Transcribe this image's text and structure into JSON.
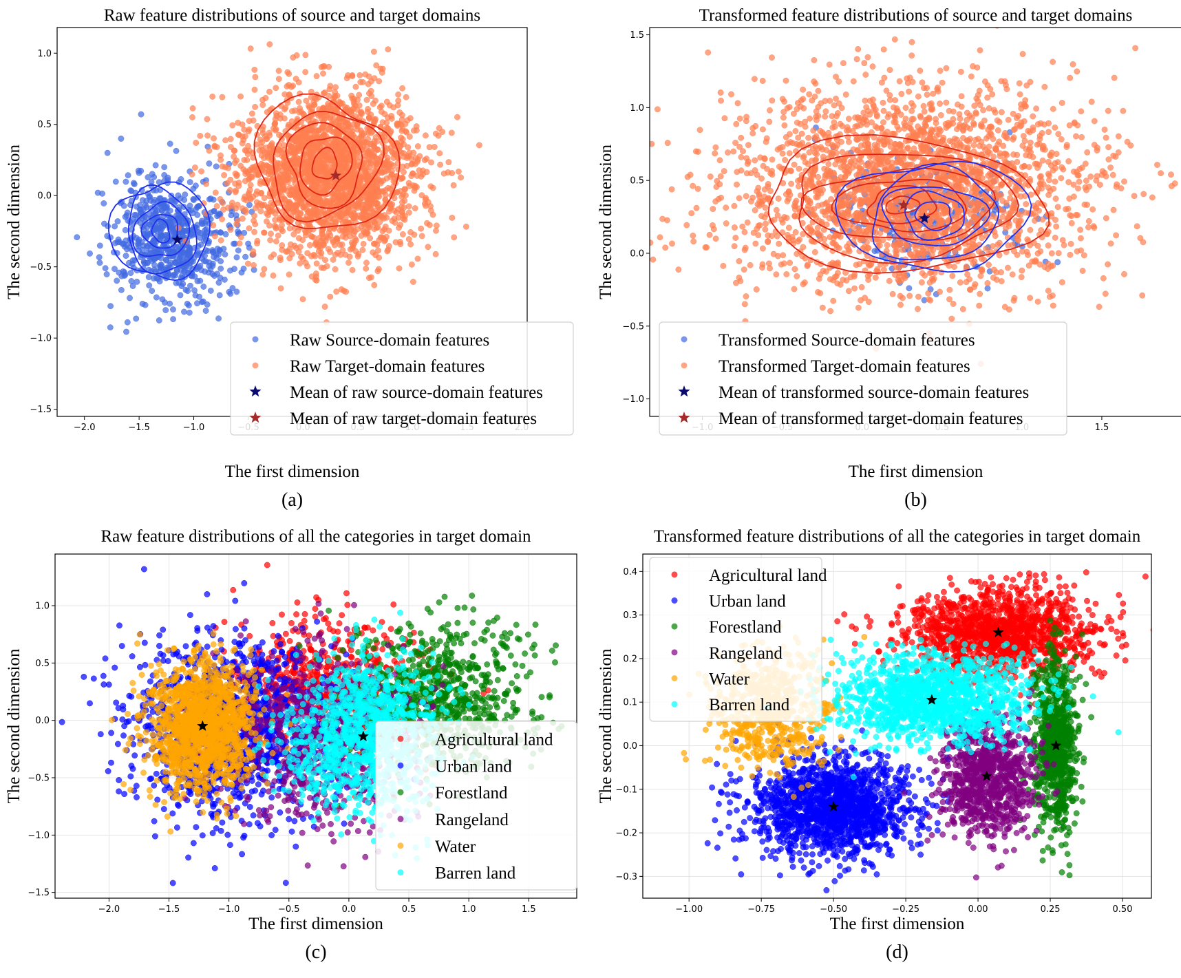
{
  "colors": {
    "source": "#4169e1",
    "target": "#ff7f50",
    "source_contour": "#1f2ff0",
    "target_contour": "#dd2515",
    "source_mean": "#0a0a6e",
    "target_mean": "#a52a2a",
    "agricultural": "#ff0000",
    "urban": "#0000ff",
    "forest": "#008000",
    "range": "#800080",
    "water": "#ffa500",
    "barren": "#00ffff",
    "category_mean": "#000000"
  },
  "chart_data": [
    {
      "id": "a",
      "type": "scatter",
      "panel_label": "(a)",
      "title": "Raw feature distributions of source and target domains",
      "xlabel": "The first dimension",
      "ylabel": "The second dimension",
      "xlim": [
        -2.25,
        2.05
      ],
      "ylim": [
        -1.55,
        1.18
      ],
      "xticks": [
        -2.0,
        -1.5,
        -1.0,
        -0.5,
        0.0,
        0.5,
        1.0,
        1.5,
        2.0
      ],
      "yticks": [
        -1.5,
        -1.0,
        -0.5,
        0.0,
        0.5,
        1.0
      ],
      "tick_labels_x": [
        "−2.0",
        "−1.5",
        "−1.0",
        "−0.5",
        "0.0",
        "0.5",
        "1.0",
        "1.5",
        "2.0"
      ],
      "tick_labels_y": [
        "−1.5",
        "−1.0",
        "−0.5",
        "0.0",
        "0.5",
        "1.0"
      ],
      "grid": false,
      "legend_position": "bottom-right",
      "clusters": [
        {
          "name": "Raw Source-domain features",
          "color_key": "source",
          "center": [
            -1.2,
            -0.3
          ],
          "spread": [
            0.28,
            0.22
          ],
          "n": 700
        },
        {
          "name": "Raw Target-domain features",
          "color_key": "target",
          "center": [
            0.25,
            0.15
          ],
          "spread": [
            0.42,
            0.3
          ],
          "n": 2300
        }
      ],
      "contours": [
        {
          "color_key": "source_contour",
          "center": [
            -1.3,
            -0.25
          ],
          "radii": [
            [
              0.42,
              0.36
            ],
            [
              0.33,
              0.28
            ],
            [
              0.24,
              0.2
            ],
            [
              0.15,
              0.13
            ],
            [
              0.08,
              0.08
            ]
          ]
        },
        {
          "color_key": "target_contour",
          "center": [
            0.2,
            0.22
          ],
          "radii": [
            [
              0.62,
              0.48
            ],
            [
              0.48,
              0.38
            ],
            [
              0.35,
              0.28
            ],
            [
              0.23,
              0.2
            ],
            [
              0.12,
              0.1
            ]
          ]
        }
      ],
      "means": [
        {
          "name": "Mean of raw source-domain features",
          "color_key": "source_mean",
          "x": -1.15,
          "y": -0.31
        },
        {
          "name": "Mean of raw target-domain features",
          "color_key": "target_mean",
          "x": 0.3,
          "y": 0.14
        }
      ],
      "legend": [
        {
          "label": "Raw Source-domain features",
          "marker": "dot",
          "color_key": "source"
        },
        {
          "label": "Raw Target-domain features",
          "marker": "dot",
          "color_key": "target"
        },
        {
          "label": "Mean of raw source-domain features",
          "marker": "star",
          "color_key": "source_mean"
        },
        {
          "label": "Mean of raw target-domain features",
          "marker": "star",
          "color_key": "target_mean"
        }
      ]
    },
    {
      "id": "b",
      "type": "scatter",
      "panel_label": "(b)",
      "title": "Transformed feature distributions of source and target domains",
      "xlabel": "The first dimension",
      "ylabel": "The second dimension",
      "xlim": [
        -1.33,
        2.0
      ],
      "ylim": [
        -1.12,
        1.55
      ],
      "xticks": [
        -1.0,
        -0.5,
        0.0,
        0.5,
        1.0,
        1.5
      ],
      "yticks": [
        -1.0,
        -0.5,
        0.0,
        0.5,
        1.0,
        1.5
      ],
      "tick_labels_x": [
        "−1.0",
        "−0.5",
        "0.0",
        "0.5",
        "1.0",
        "1.5"
      ],
      "tick_labels_y": [
        "−1.0",
        "−0.5",
        "0.0",
        "0.5",
        "1.0",
        "1.5"
      ],
      "grid": false,
      "legend_position": "bottom-left",
      "clusters": [
        {
          "name": "Transformed Source-domain features",
          "color_key": "source",
          "center": [
            0.4,
            0.25
          ],
          "spread": [
            0.3,
            0.2
          ],
          "n": 300
        },
        {
          "name": "Transformed Target-domain features",
          "color_key": "target",
          "center": [
            0.3,
            0.45
          ],
          "spread": [
            0.55,
            0.35
          ],
          "n": 2600
        }
      ],
      "contours": [
        {
          "color_key": "target_contour",
          "center": [
            0.25,
            0.33
          ],
          "radii": [
            [
              0.95,
              0.42
            ],
            [
              0.75,
              0.34
            ],
            [
              0.55,
              0.26
            ],
            [
              0.38,
              0.19
            ],
            [
              0.22,
              0.12
            ],
            [
              0.1,
              0.06
            ]
          ]
        },
        {
          "color_key": "source_contour",
          "center": [
            0.45,
            0.26
          ],
          "radii": [
            [
              0.55,
              0.4
            ],
            [
              0.42,
              0.3
            ],
            [
              0.3,
              0.22
            ],
            [
              0.2,
              0.15
            ],
            [
              0.12,
              0.09
            ]
          ]
        }
      ],
      "means": [
        {
          "name": "Mean of transformed source-domain features",
          "color_key": "source_mean",
          "x": 0.39,
          "y": 0.24
        },
        {
          "name": "Mean of transformed target-domain features",
          "color_key": "target_mean",
          "x": 0.26,
          "y": 0.33
        }
      ],
      "legend": [
        {
          "label": "Transformed Source-domain features",
          "marker": "dot",
          "color_key": "source"
        },
        {
          "label": "Transformed Target-domain features",
          "marker": "dot",
          "color_key": "target"
        },
        {
          "label": "Mean of transformed source-domain features",
          "marker": "star",
          "color_key": "source_mean"
        },
        {
          "label": "Mean of transformed target-domain features",
          "marker": "star",
          "color_key": "target_mean"
        }
      ]
    },
    {
      "id": "c",
      "type": "scatter",
      "panel_label": "(c)",
      "title": "Raw feature distributions of all the categories in target domain",
      "xlabel": "The first dimension",
      "ylabel": "The second dimension",
      "xlim": [
        -2.45,
        1.9
      ],
      "ylim": [
        -1.55,
        1.45
      ],
      "xticks": [
        -2.0,
        -1.5,
        -1.0,
        -0.5,
        0.0,
        0.5,
        1.0,
        1.5
      ],
      "yticks": [
        -1.5,
        -1.0,
        -0.5,
        0.0,
        0.5,
        1.0
      ],
      "tick_labels_x": [
        "−2.0",
        "−1.5",
        "−1.0",
        "−0.5",
        "0.0",
        "0.5",
        "1.0",
        "1.5"
      ],
      "tick_labels_y": [
        "−1.5",
        "−1.0",
        "−0.5",
        "0.0",
        "0.5",
        "1.0"
      ],
      "grid": true,
      "legend_position": "bottom-right",
      "clusters": [
        {
          "name": "Agricultural land",
          "color_key": "agricultural",
          "center": [
            -0.2,
            0.3
          ],
          "spread": [
            0.4,
            0.3
          ],
          "n": 600
        },
        {
          "name": "Urban land",
          "color_key": "urban",
          "center": [
            -1.0,
            -0.05
          ],
          "spread": [
            0.42,
            0.38
          ],
          "n": 1300
        },
        {
          "name": "Forestland",
          "color_key": "forest",
          "center": [
            0.75,
            0.2
          ],
          "spread": [
            0.38,
            0.32
          ],
          "n": 800
        },
        {
          "name": "Rangeland",
          "color_key": "range",
          "center": [
            -0.2,
            -0.15
          ],
          "spread": [
            0.4,
            0.38
          ],
          "n": 700
        },
        {
          "name": "Water",
          "color_key": "water",
          "center": [
            -1.22,
            -0.05
          ],
          "spread": [
            0.22,
            0.28
          ],
          "n": 1400
        },
        {
          "name": "Barren land",
          "color_key": "barren",
          "center": [
            0.12,
            -0.14
          ],
          "spread": [
            0.32,
            0.32
          ],
          "n": 1100
        }
      ],
      "means": [
        {
          "name": "Water mean",
          "color_key": "category_mean",
          "x": -1.22,
          "y": -0.05
        },
        {
          "name": "Barren land mean",
          "color_key": "category_mean",
          "x": 0.12,
          "y": -0.14
        }
      ],
      "legend": [
        {
          "label": "Agricultural land",
          "marker": "dot",
          "color_key": "agricultural"
        },
        {
          "label": "Urban land",
          "marker": "dot",
          "color_key": "urban"
        },
        {
          "label": "Forestland",
          "marker": "dot",
          "color_key": "forest"
        },
        {
          "label": "Rangeland",
          "marker": "dot",
          "color_key": "range"
        },
        {
          "label": "Water",
          "marker": "dot",
          "color_key": "water"
        },
        {
          "label": "Barren land",
          "marker": "dot",
          "color_key": "barren"
        }
      ]
    },
    {
      "id": "d",
      "type": "scatter",
      "panel_label": "(d)",
      "title": "Transformed feature distributions of all the categories in target domain",
      "xlabel": "The first dimension",
      "ylabel": "The second dimension",
      "xlim": [
        -1.16,
        0.6
      ],
      "ylim": [
        -0.35,
        0.44
      ],
      "xticks": [
        -1.0,
        -0.75,
        -0.5,
        -0.25,
        0.0,
        0.25,
        0.5
      ],
      "yticks": [
        -0.3,
        -0.2,
        -0.1,
        0.0,
        0.1,
        0.2,
        0.3,
        0.4
      ],
      "tick_labels_x": [
        "−1.00",
        "−0.75",
        "−0.50",
        "−0.25",
        "0.00",
        "0.25",
        "0.50"
      ],
      "tick_labels_y": [
        "−0.3",
        "−0.2",
        "−0.1",
        "0.0",
        "0.1",
        "0.2",
        "0.3",
        "0.4"
      ],
      "grid": true,
      "legend_position": "top-left",
      "clusters": [
        {
          "name": "Agricultural land",
          "color_key": "agricultural",
          "center": [
            0.07,
            0.26
          ],
          "spread": [
            0.17,
            0.05
          ],
          "n": 1300
        },
        {
          "name": "Urban land",
          "color_key": "urban",
          "center": [
            -0.5,
            -0.14
          ],
          "spread": [
            0.14,
            0.055
          ],
          "n": 1500
        },
        {
          "name": "Forestland",
          "color_key": "forest",
          "center": [
            0.27,
            0.0
          ],
          "spread": [
            0.035,
            0.1
          ],
          "n": 800
        },
        {
          "name": "Rangeland",
          "color_key": "range",
          "center": [
            0.03,
            -0.07
          ],
          "spread": [
            0.08,
            0.07
          ],
          "n": 900
        },
        {
          "name": "Water",
          "color_key": "water",
          "center": [
            -0.72,
            0.08
          ],
          "spread": [
            0.1,
            0.07
          ],
          "n": 600
        },
        {
          "name": "Barren land",
          "color_key": "barren",
          "center": [
            -0.16,
            0.11
          ],
          "spread": [
            0.17,
            0.05
          ],
          "n": 1300
        }
      ],
      "means": [
        {
          "name": "Agricultural land mean",
          "color_key": "category_mean",
          "x": 0.07,
          "y": 0.26
        },
        {
          "name": "Urban land mean",
          "color_key": "category_mean",
          "x": -0.5,
          "y": -0.14
        },
        {
          "name": "Forestland mean",
          "color_key": "category_mean",
          "x": 0.27,
          "y": 0.0
        },
        {
          "name": "Rangeland mean",
          "color_key": "category_mean",
          "x": 0.03,
          "y": -0.07
        },
        {
          "name": "Barren land mean",
          "color_key": "category_mean",
          "x": -0.16,
          "y": 0.105
        }
      ],
      "legend": [
        {
          "label": "Agricultural land",
          "marker": "dot",
          "color_key": "agricultural"
        },
        {
          "label": "Urban land",
          "marker": "dot",
          "color_key": "urban"
        },
        {
          "label": "Forestland",
          "marker": "dot",
          "color_key": "forest"
        },
        {
          "label": "Rangeland",
          "marker": "dot",
          "color_key": "range"
        },
        {
          "label": "Water",
          "marker": "dot",
          "color_key": "water"
        },
        {
          "label": "Barren land",
          "marker": "dot",
          "color_key": "barren"
        }
      ]
    }
  ]
}
